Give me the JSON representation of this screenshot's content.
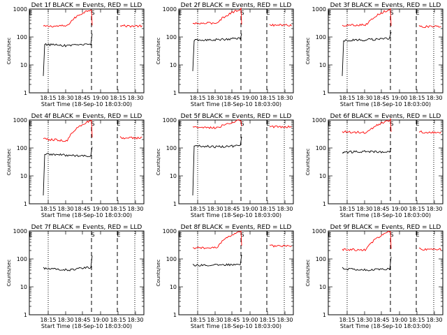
{
  "xlabel": "Start Time (18-Sep-10 18:03:00)",
  "ylabel": "Counts/sec",
  "y_ticks": [
    "1",
    "10",
    "100",
    "1000"
  ],
  "x_ticks": [
    "18:15",
    "18:30",
    "18:45",
    "19:00",
    "18:15",
    "18:30"
  ],
  "event_markers": [
    "E",
    "S",
    "E"
  ],
  "colors": {
    "events": "#000000",
    "lld": "#ff0000",
    "axes": "#000000"
  },
  "chart_data": [
    {
      "type": "line",
      "title": "Det 1f BLACK = Events, RED = LLD",
      "y_scale": "log",
      "ylim": [
        1,
        1000
      ],
      "series": [
        {
          "values": [
            4.0,
            55,
            48,
            55,
            130
          ]
        },
        {
          "values": [
            300,
            240,
            250,
            1000,
            260
          ]
        }
      ]
    },
    {
      "type": "line",
      "title": "Det 2f BLACK = Events, RED = LLD",
      "y_scale": "log",
      "ylim": [
        1,
        1000
      ],
      "series": [
        {
          "values": [
            6.0,
            75,
            80,
            90,
            130
          ]
        },
        {
          "values": [
            320,
            300,
            320,
            1000,
            280
          ]
        }
      ]
    },
    {
      "type": "line",
      "title": "Det 3f BLACK = Events, RED = LLD",
      "y_scale": "log",
      "ylim": [
        1,
        1000
      ],
      "series": [
        {
          "values": [
            4.0,
            75,
            80,
            90,
            150
          ]
        },
        {
          "values": [
            270,
            260,
            280,
            1000,
            250
          ]
        }
      ]
    },
    {
      "type": "line",
      "title": "Det 4f BLACK = Events, RED = LLD",
      "y_scale": "log",
      "ylim": [
        1,
        1000
      ],
      "series": [
        {
          "values": [
            2.0,
            60,
            55,
            50,
            110
          ]
        },
        {
          "values": [
            260,
            210,
            180,
            1000,
            240
          ]
        }
      ]
    },
    {
      "type": "line",
      "title": "Det 5f BLACK = Events, RED = LLD",
      "y_scale": "log",
      "ylim": [
        1,
        1000
      ],
      "series": [
        {
          "values": [
            2.0,
            120,
            110,
            120,
            250
          ]
        },
        {
          "values": [
            580,
            560,
            520,
            1000,
            600
          ]
        }
      ]
    },
    {
      "type": "line",
      "title": "Det 6f BLACK = Events, RED = LLD",
      "y_scale": "log",
      "ylim": [
        1,
        1000
      ],
      "series": [
        {
          "values": [
            65,
            70,
            75,
            70,
            100
          ]
        },
        {
          "values": [
            400,
            380,
            360,
            1000,
            380
          ]
        }
      ]
    },
    {
      "type": "line",
      "title": "Det 7f BLACK = Events, RED = LLD",
      "y_scale": "log",
      "ylim": [
        1,
        1000
      ],
      "series": [
        {
          "values": [
            50,
            45,
            40,
            50,
            130
          ]
        },
        {
          "values": []
        }
      ]
    },
    {
      "type": "line",
      "title": "Det 8f BLACK = Events, RED = LLD",
      "y_scale": "log",
      "ylim": [
        1,
        1000
      ],
      "series": [
        {
          "values": [
            65,
            60,
            60,
            65,
            140
          ]
        },
        {
          "values": [
            260,
            250,
            250,
            1000,
            300
          ]
        }
      ]
    },
    {
      "type": "line",
      "title": "Det 9f BLACK = Events, RED = LLD",
      "y_scale": "log",
      "ylim": [
        1,
        1000
      ],
      "series": [
        {
          "values": [
            50,
            45,
            40,
            45,
            120
          ]
        },
        {
          "values": [
            230,
            220,
            210,
            1000,
            230
          ]
        }
      ]
    }
  ]
}
